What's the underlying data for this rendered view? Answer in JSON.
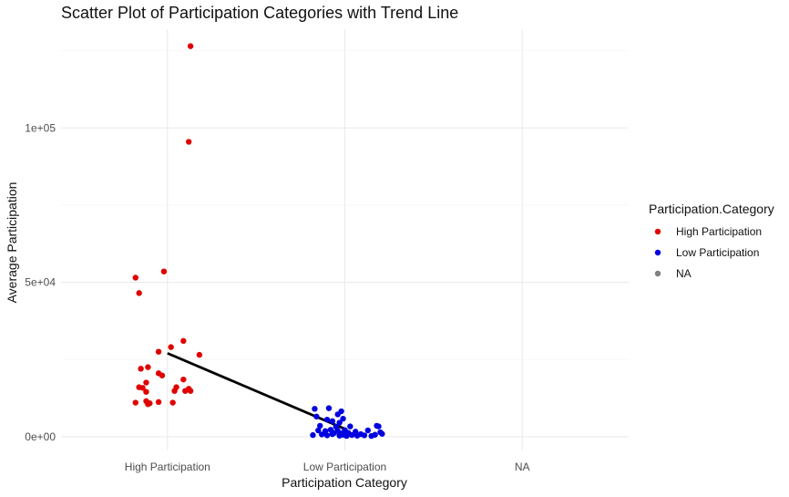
{
  "chart_data": {
    "type": "scatter",
    "title": "Scatter Plot of Participation Categories with Trend Line",
    "xlabel": "Participation Category",
    "ylabel": "Average Participation",
    "categories": [
      "High Participation",
      "Low Participation",
      "NA"
    ],
    "y_ticks": [
      0,
      50000,
      100000
    ],
    "y_tick_labels": [
      "0e+00",
      "5e+04",
      "1e+05"
    ],
    "ylim": [
      -4500,
      132000
    ],
    "grid": true,
    "legend": {
      "title": "Participation.Category",
      "position": "right",
      "entries": [
        {
          "label": "High Participation",
          "color": "#e00000"
        },
        {
          "label": "Low Participation",
          "color": "#0000e0"
        },
        {
          "label": "NA",
          "color": "#7f7f7f"
        }
      ]
    },
    "series": [
      {
        "name": "High Participation",
        "color": "#e00000",
        "points": [
          {
            "x": 1.13,
            "y": 126500
          },
          {
            "x": 1.12,
            "y": 95500
          },
          {
            "x": 0.82,
            "y": 51500
          },
          {
            "x": 0.98,
            "y": 53500
          },
          {
            "x": 0.84,
            "y": 46500
          },
          {
            "x": 1.09,
            "y": 31000
          },
          {
            "x": 1.18,
            "y": 26500
          },
          {
            "x": 1.02,
            "y": 29000
          },
          {
            "x": 0.95,
            "y": 27500
          },
          {
            "x": 0.85,
            "y": 22000
          },
          {
            "x": 0.89,
            "y": 22500
          },
          {
            "x": 0.95,
            "y": 20500
          },
          {
            "x": 0.97,
            "y": 19800
          },
          {
            "x": 0.88,
            "y": 17500
          },
          {
            "x": 1.09,
            "y": 18500
          },
          {
            "x": 0.84,
            "y": 16000
          },
          {
            "x": 0.86,
            "y": 15800
          },
          {
            "x": 1.05,
            "y": 16000
          },
          {
            "x": 1.04,
            "y": 14800
          },
          {
            "x": 1.1,
            "y": 14800
          },
          {
            "x": 1.12,
            "y": 15500
          },
          {
            "x": 1.13,
            "y": 14800
          },
          {
            "x": 0.88,
            "y": 14500
          },
          {
            "x": 0.82,
            "y": 11000
          },
          {
            "x": 0.88,
            "y": 11500
          },
          {
            "x": 0.89,
            "y": 10500
          },
          {
            "x": 0.9,
            "y": 10800
          },
          {
            "x": 0.95,
            "y": 11200
          },
          {
            "x": 1.03,
            "y": 11000
          }
        ]
      },
      {
        "name": "Low Participation",
        "color": "#0000e0",
        "points": [
          {
            "x": 1.83,
            "y": 9000
          },
          {
            "x": 1.91,
            "y": 9200
          },
          {
            "x": 1.98,
            "y": 8200
          },
          {
            "x": 1.96,
            "y": 7200
          },
          {
            "x": 1.84,
            "y": 6500
          },
          {
            "x": 1.9,
            "y": 5500
          },
          {
            "x": 1.93,
            "y": 5000
          },
          {
            "x": 1.97,
            "y": 4500
          },
          {
            "x": 1.99,
            "y": 5800
          },
          {
            "x": 1.86,
            "y": 3500
          },
          {
            "x": 1.95,
            "y": 3200
          },
          {
            "x": 2.03,
            "y": 3300
          },
          {
            "x": 2.18,
            "y": 3500
          },
          {
            "x": 2.19,
            "y": 3300
          },
          {
            "x": 1.85,
            "y": 2000
          },
          {
            "x": 1.89,
            "y": 1800
          },
          {
            "x": 1.92,
            "y": 2200
          },
          {
            "x": 1.96,
            "y": 1900
          },
          {
            "x": 2.0,
            "y": 2100
          },
          {
            "x": 2.13,
            "y": 2000
          },
          {
            "x": 2.06,
            "y": 1600
          },
          {
            "x": 2.2,
            "y": 1400
          },
          {
            "x": 1.82,
            "y": 500
          },
          {
            "x": 1.87,
            "y": 700
          },
          {
            "x": 1.9,
            "y": 400
          },
          {
            "x": 1.93,
            "y": 800
          },
          {
            "x": 1.97,
            "y": 300
          },
          {
            "x": 1.99,
            "y": 600
          },
          {
            "x": 2.01,
            "y": 200
          },
          {
            "x": 2.04,
            "y": 500
          },
          {
            "x": 2.07,
            "y": 300
          },
          {
            "x": 2.09,
            "y": 800
          },
          {
            "x": 2.11,
            "y": 400
          },
          {
            "x": 2.15,
            "y": 200
          },
          {
            "x": 2.17,
            "y": 600
          },
          {
            "x": 2.21,
            "y": 900
          },
          {
            "x": 1.94,
            "y": 1200
          },
          {
            "x": 1.98,
            "y": 1000
          },
          {
            "x": 2.02,
            "y": 1200
          }
        ]
      }
    ],
    "trend_line": {
      "color": "#000000",
      "points": [
        {
          "x": 1.0,
          "y": 27000
        },
        {
          "x": 2.0,
          "y": 2500
        }
      ]
    }
  }
}
